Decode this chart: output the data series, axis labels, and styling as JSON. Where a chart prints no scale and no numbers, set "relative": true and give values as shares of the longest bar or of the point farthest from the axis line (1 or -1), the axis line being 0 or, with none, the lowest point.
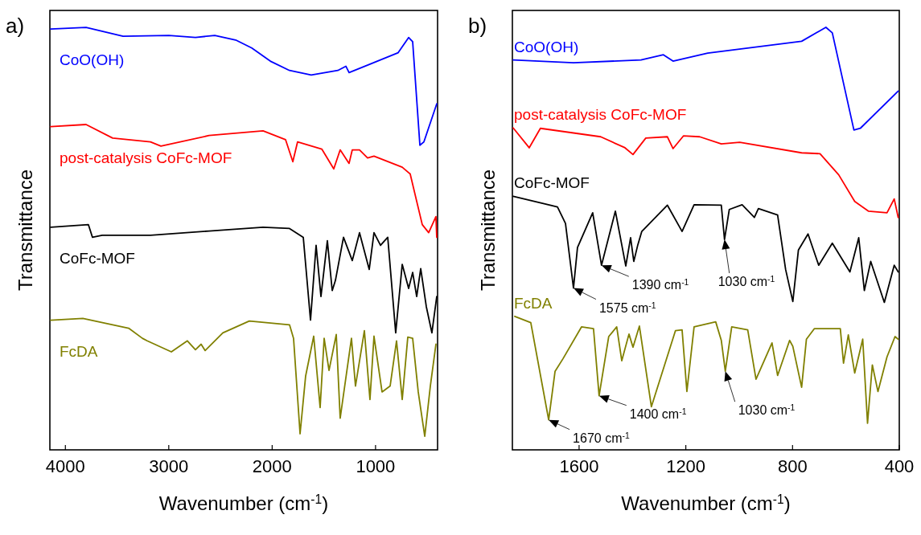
{
  "chart_data": [
    {
      "type": "line",
      "title": "a)",
      "xlabel": "Wavenumber (cm$^{-1}$)",
      "ylabel": "Transmittance",
      "relative": true,
      "xlim": [
        4150,
        400
      ],
      "xticks": [
        4000,
        3000,
        2000,
        1000
      ],
      "line_style": "solid",
      "marker": "none",
      "series": [
        {
          "name": "CoO(OH)",
          "color": "#0000ff",
          "x": [
            4142,
            3800,
            3442,
            2999,
            2742,
            2555,
            2353,
            2197,
            2010,
            1832,
            1622,
            1365,
            1287,
            1256,
            1054,
            781,
            680,
            641,
            571,
            532,
            408
          ],
          "values": [
            0.996,
            1.0,
            0.979,
            0.981,
            0.976,
            0.981,
            0.97,
            0.951,
            0.919,
            0.898,
            0.887,
            0.898,
            0.908,
            0.893,
            0.913,
            0.94,
            0.976,
            0.966,
            0.721,
            0.729,
            0.819
          ]
        },
        {
          "name": "post-catalysis CoFc-MOF",
          "color": "#ff0000",
          "x": [
            4142,
            3800,
            3543,
            3177,
            3076,
            2610,
            2088,
            1870,
            1800,
            1754,
            1520,
            1404,
            1342,
            1256,
            1225,
            1155,
            1077,
            1015,
            742,
            665,
            548,
            486,
            416,
            408
          ],
          "values": [
            0.765,
            0.77,
            0.738,
            0.729,
            0.719,
            0.744,
            0.755,
            0.734,
            0.682,
            0.729,
            0.712,
            0.665,
            0.71,
            0.678,
            0.71,
            0.71,
            0.691,
            0.695,
            0.669,
            0.653,
            0.533,
            0.514,
            0.552,
            0.503
          ]
        },
        {
          "name": "CoFc-MOF",
          "color": "#000000",
          "x": [
            4142,
            3777,
            3738,
            3644,
            3177,
            2610,
            2088,
            1832,
            1699,
            1629,
            1575,
            1528,
            1466,
            1419,
            1388,
            1310,
            1225,
            1155,
            1061,
            1015,
            952,
            882,
            805,
            742,
            680,
            641,
            602,
            563,
            509,
            455,
            408
          ],
          "values": [
            0.527,
            0.533,
            0.503,
            0.508,
            0.508,
            0.518,
            0.527,
            0.524,
            0.503,
            0.307,
            0.484,
            0.363,
            0.495,
            0.377,
            0.401,
            0.503,
            0.448,
            0.514,
            0.427,
            0.514,
            0.484,
            0.503,
            0.277,
            0.439,
            0.382,
            0.42,
            0.363,
            0.429,
            0.339,
            0.277,
            0.363
          ]
        },
        {
          "name": "FcDA",
          "color": "#808000",
          "x": [
            4142,
            3831,
            3388,
            3255,
            3209,
            2975,
            2820,
            2742,
            2687,
            2648,
            2477,
            2221,
            1832,
            1793,
            1730,
            1676,
            1598,
            1536,
            1497,
            1450,
            1380,
            1342,
            1233,
            1194,
            1108,
            1054,
            1015,
            937,
            859,
            797,
            742,
            688,
            641,
            587,
            524,
            470,
            416
          ],
          "values": [
            0.307,
            0.311,
            0.288,
            0.264,
            0.258,
            0.232,
            0.258,
            0.237,
            0.25,
            0.235,
            0.277,
            0.305,
            0.296,
            0.264,
            0.038,
            0.175,
            0.269,
            0.1,
            0.264,
            0.188,
            0.273,
            0.075,
            0.264,
            0.151,
            0.282,
            0.119,
            0.269,
            0.137,
            0.151,
            0.258,
            0.119,
            0.267,
            0.264,
            0.137,
            0.032,
            0.151,
            0.25
          ]
        }
      ]
    },
    {
      "type": "line",
      "title": "b)",
      "xlabel": "Wavenumber (cm$^{-1}$)",
      "ylabel": "Transmittance",
      "relative": true,
      "xlim": [
        1850,
        400
      ],
      "xticks": [
        1600,
        1200,
        800,
        400
      ],
      "line_style": "solid",
      "marker": "none",
      "annotations": [
        {
          "text": "1575 cm$^{-1}$",
          "x": 1621,
          "y": 0.383
        },
        {
          "text": "1390 cm$^{-1}$",
          "x": 1516,
          "y": 0.437
        },
        {
          "text": "1030 cm$^{-1}$",
          "x": 1055,
          "y": 0.498
        },
        {
          "text": "1670 cm$^{-1}$",
          "x": 1714,
          "y": 0.071
        },
        {
          "text": "1400 cm$^{-1}$",
          "x": 1525,
          "y": 0.128
        },
        {
          "text": "1030 cm$^{-1}$",
          "x": 1052,
          "y": 0.186
        }
      ],
      "series": [
        {
          "name": "CoO(OH)",
          "color": "#0000ff",
          "x": [
            1847,
            1621,
            1368,
            1284,
            1248,
            1118,
            766,
            675,
            651,
            570,
            546,
            404
          ],
          "values": [
            0.923,
            0.916,
            0.923,
            0.935,
            0.92,
            0.939,
            0.967,
            1.0,
            0.987,
            0.757,
            0.761,
            0.849
          ]
        },
        {
          "name": "post-catalysis CoFc-MOF",
          "color": "#ff0000",
          "x": [
            1847,
            1787,
            1745,
            1519,
            1428,
            1398,
            1350,
            1269,
            1248,
            1209,
            1148,
            1067,
            998,
            766,
            697,
            627,
            567,
            516,
            446,
            419,
            404
          ],
          "values": [
            0.762,
            0.715,
            0.761,
            0.741,
            0.715,
            0.699,
            0.738,
            0.741,
            0.713,
            0.743,
            0.741,
            0.724,
            0.728,
            0.703,
            0.701,
            0.651,
            0.588,
            0.565,
            0.561,
            0.594,
            0.55
          ]
        },
        {
          "name": "CoFc-MOF",
          "color": "#000000",
          "x": [
            1847,
            1681,
            1651,
            1621,
            1606,
            1549,
            1516,
            1464,
            1425,
            1407,
            1395,
            1380,
            1365,
            1269,
            1214,
            1169,
            1067,
            1055,
            1037,
            989,
            943,
            928,
            856,
            826,
            799,
            778,
            742,
            702,
            651,
            585,
            552,
            531,
            507,
            456,
            419,
            404
          ],
          "values": [
            0.6,
            0.575,
            0.536,
            0.383,
            0.479,
            0.561,
            0.437,
            0.565,
            0.435,
            0.502,
            0.446,
            0.485,
            0.517,
            0.579,
            0.517,
            0.58,
            0.579,
            0.498,
            0.569,
            0.58,
            0.55,
            0.571,
            0.556,
            0.427,
            0.351,
            0.473,
            0.511,
            0.437,
            0.489,
            0.421,
            0.502,
            0.377,
            0.446,
            0.349,
            0.437,
            0.421
          ]
        },
        {
          "name": "FcDA",
          "color": "#808000",
          "x": [
            1841,
            1781,
            1714,
            1690,
            1660,
            1591,
            1546,
            1525,
            1489,
            1459,
            1440,
            1413,
            1398,
            1374,
            1329,
            1239,
            1214,
            1196,
            1169,
            1088,
            1067,
            1052,
            1028,
            968,
            937,
            877,
            856,
            811,
            799,
            766,
            748,
            718,
            621,
            609,
            591,
            567,
            537,
            519,
            501,
            480,
            446,
            416,
            404
          ],
          "values": [
            0.316,
            0.301,
            0.071,
            0.186,
            0.216,
            0.291,
            0.287,
            0.128,
            0.268,
            0.291,
            0.211,
            0.274,
            0.243,
            0.293,
            0.102,
            0.282,
            0.284,
            0.138,
            0.291,
            0.303,
            0.259,
            0.186,
            0.291,
            0.284,
            0.167,
            0.253,
            0.176,
            0.259,
            0.245,
            0.148,
            0.262,
            0.287,
            0.287,
            0.205,
            0.272,
            0.182,
            0.262,
            0.063,
            0.201,
            0.138,
            0.22,
            0.268,
            0.262
          ]
        }
      ]
    }
  ]
}
